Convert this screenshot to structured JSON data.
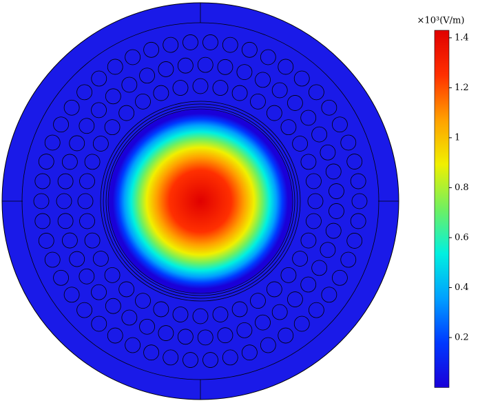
{
  "chart_data": {
    "type": "field",
    "colorbar_label": "×10³(V/m)",
    "clim": [
      0,
      1.43
    ],
    "cticks": [
      0.2,
      0.4,
      0.6,
      0.8,
      1,
      1.2,
      1.4
    ],
    "colormap": [
      "#1a00d8",
      "#0038ff",
      "#00a0ff",
      "#00f0e0",
      "#70f060",
      "#f0f000",
      "#ffa000",
      "#ff3000",
      "#e00000"
    ],
    "background_color": "#1a1ae8"
  }
}
